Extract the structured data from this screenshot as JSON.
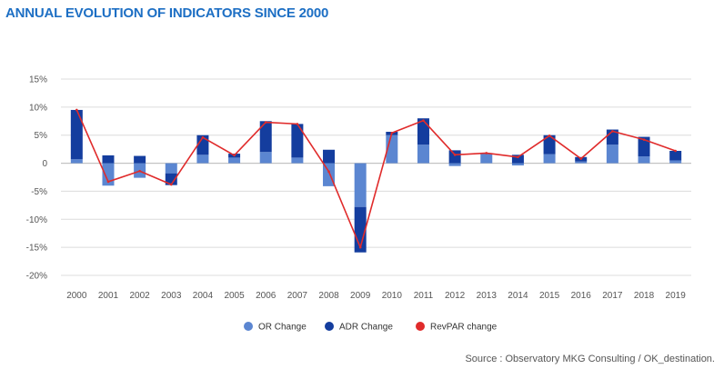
{
  "chart_data": {
    "type": "bar",
    "title": "ANNUAL EVOLUTION OF INDICATORS SINCE 2000",
    "source": "Source : Observatory MKG Consulting / OK_destination.",
    "categories": [
      "2000",
      "2001",
      "2002",
      "2003",
      "2004",
      "2005",
      "2006",
      "2007",
      "2008",
      "2009",
      "2010",
      "2011",
      "2012",
      "2013",
      "2014",
      "2015",
      "2016",
      "2017",
      "2018",
      "2019"
    ],
    "yticks": [
      "15%",
      "10%",
      "5%",
      "0",
      "-5%",
      "-10%",
      "-15%",
      "-20%"
    ],
    "ylim": [
      -20,
      15
    ],
    "grid": true,
    "legend_position": "bottom",
    "stacked": true,
    "series": [
      {
        "name": "OR Change",
        "type": "bar",
        "color": "#5b86d1",
        "values": [
          0.7,
          -4.0,
          -2.6,
          -1.8,
          1.5,
          1.0,
          2.0,
          1.0,
          -4.1,
          -7.8,
          5.0,
          3.3,
          -0.5,
          1.8,
          -0.4,
          1.6,
          0.3,
          3.3,
          1.2,
          0.5
        ]
      },
      {
        "name": "ADR Change",
        "type": "bar",
        "color": "#143d9e",
        "values": [
          8.8,
          1.4,
          1.3,
          -2.1,
          3.5,
          0.7,
          5.5,
          6.0,
          2.4,
          -8.1,
          0.6,
          4.7,
          2.3,
          0.0,
          1.5,
          3.4,
          0.8,
          2.7,
          3.5,
          1.7
        ]
      },
      {
        "name": "RevPAR change",
        "type": "line",
        "color": "#e02b2b",
        "values": [
          9.5,
          -3.3,
          -1.4,
          -3.8,
          4.6,
          1.4,
          7.3,
          7.0,
          -1.5,
          -15.0,
          5.4,
          7.6,
          1.5,
          1.8,
          1.1,
          4.9,
          0.8,
          5.7,
          4.2,
          2.2
        ]
      }
    ]
  }
}
